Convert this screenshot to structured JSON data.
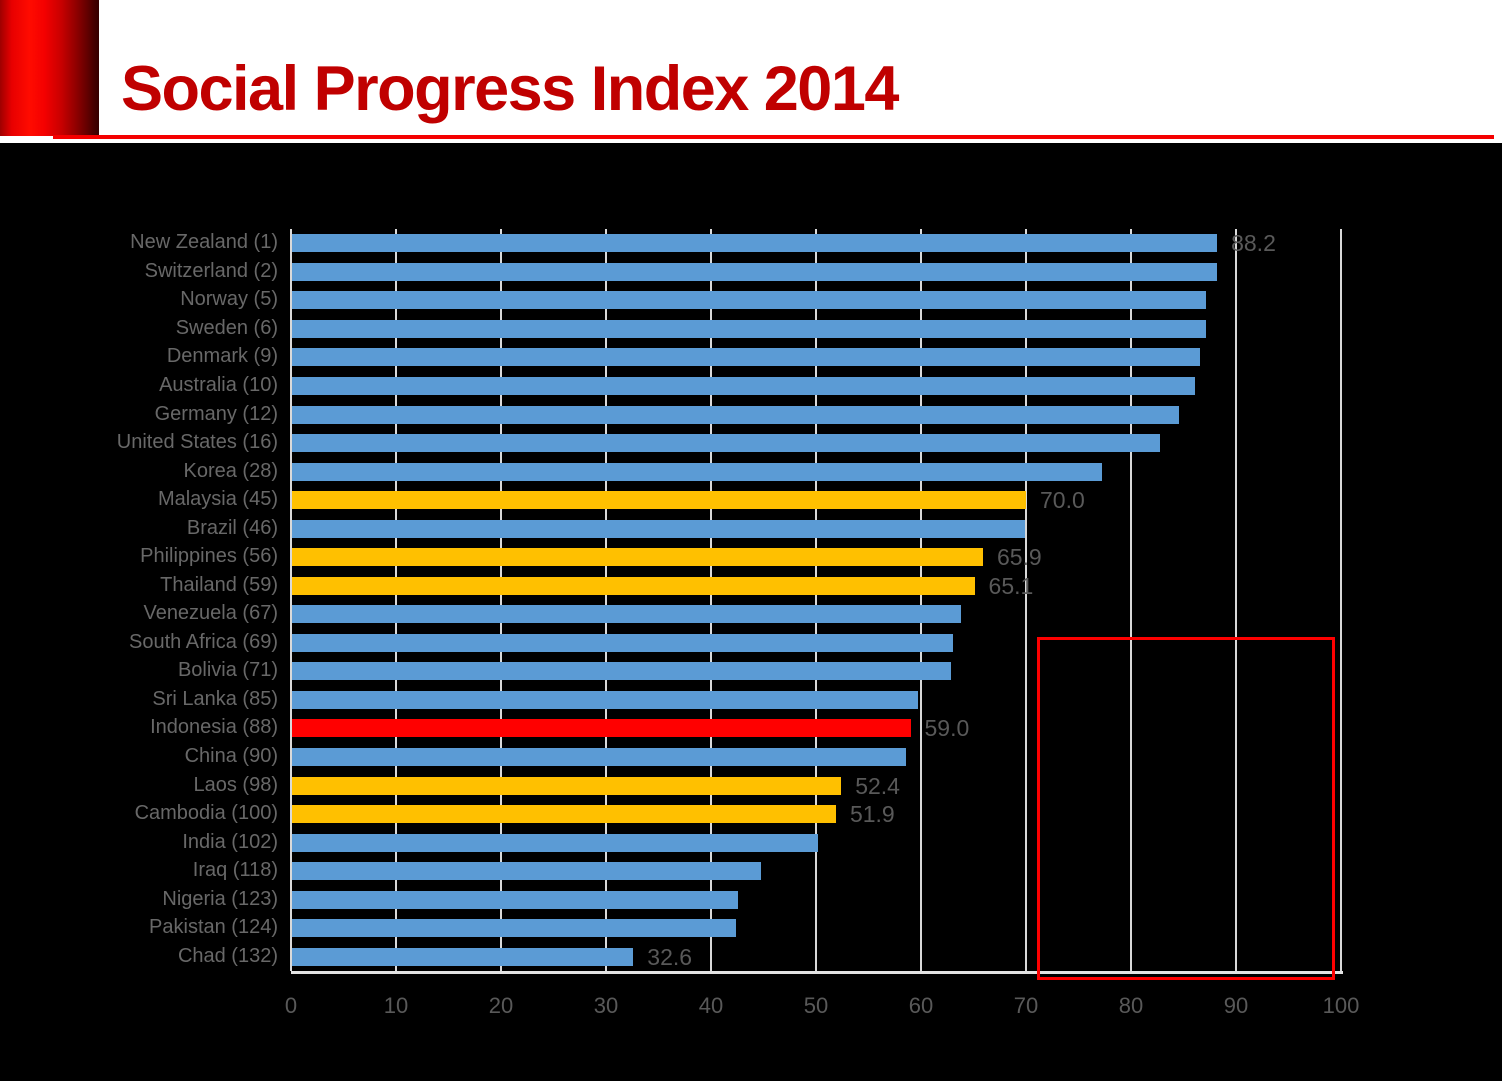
{
  "header": {
    "title": "Social Progress Index 2014"
  },
  "colors": {
    "title": "#C00000",
    "accent_red": "#F40000",
    "bar_default": "#5B9BD5",
    "bar_asean_highlight": "#FFC000",
    "bar_indonesia": "#FF0000",
    "gridline": "#D9D9D9",
    "label_gray": "#595959",
    "highlight_box_border": "#FE0000"
  },
  "chart_data": {
    "type": "bar",
    "orientation": "horizontal",
    "title": "Social Progress Index 2014",
    "xlabel": "",
    "ylabel": "",
    "xlim": [
      0,
      100
    ],
    "x_ticks": [
      0,
      10,
      20,
      30,
      40,
      50,
      60,
      70,
      80,
      90,
      100
    ],
    "grid": true,
    "legend_position": "none",
    "categories": [
      "New Zealand (1)",
      "Switzerland (2)",
      "Norway (5)",
      "Sweden (6)",
      "Denmark (9)",
      "Australia (10)",
      "Germany (12)",
      "United States (16)",
      "Korea (28)",
      "Malaysia (45)",
      "Brazil (46)",
      "Philippines (56)",
      "Thailand (59)",
      "Venezuela (67)",
      "South Africa (69)",
      "Bolivia (71)",
      "Sri Lanka (85)",
      "Indonesia (88)",
      "China (90)",
      "Laos (98)",
      "Cambodia (100)",
      "India (102)",
      "Iraq (118)",
      "Nigeria (123)",
      "Pakistan (124)",
      "Chad (132)"
    ],
    "values": [
      88.2,
      88.2,
      87.1,
      87.1,
      86.6,
      86.1,
      84.6,
      82.8,
      77.2,
      70.0,
      69.9,
      65.9,
      65.1,
      63.8,
      63.0,
      62.9,
      59.7,
      59.0,
      58.6,
      52.4,
      51.9,
      50.2,
      44.8,
      42.6,
      42.4,
      32.6
    ],
    "groups": [
      "default",
      "default",
      "default",
      "default",
      "default",
      "default",
      "default",
      "default",
      "default",
      "asean_highlight",
      "default",
      "asean_highlight",
      "asean_highlight",
      "default",
      "default",
      "default",
      "default",
      "indonesia",
      "default",
      "asean_highlight",
      "asean_highlight",
      "default",
      "default",
      "default",
      "default",
      "default"
    ],
    "data_labels": [
      "88.2",
      null,
      null,
      null,
      null,
      null,
      null,
      null,
      null,
      "70.0",
      null,
      "65.9",
      "65.1",
      null,
      null,
      null,
      null,
      "59.0",
      null,
      "52.4",
      "51.9",
      null,
      null,
      null,
      null,
      "32.6"
    ],
    "group_colors": {
      "default": "#5B9BD5",
      "asean_highlight": "#FFC000",
      "indonesia": "#FF0000"
    }
  },
  "annotation": {
    "highlight_box": true
  }
}
